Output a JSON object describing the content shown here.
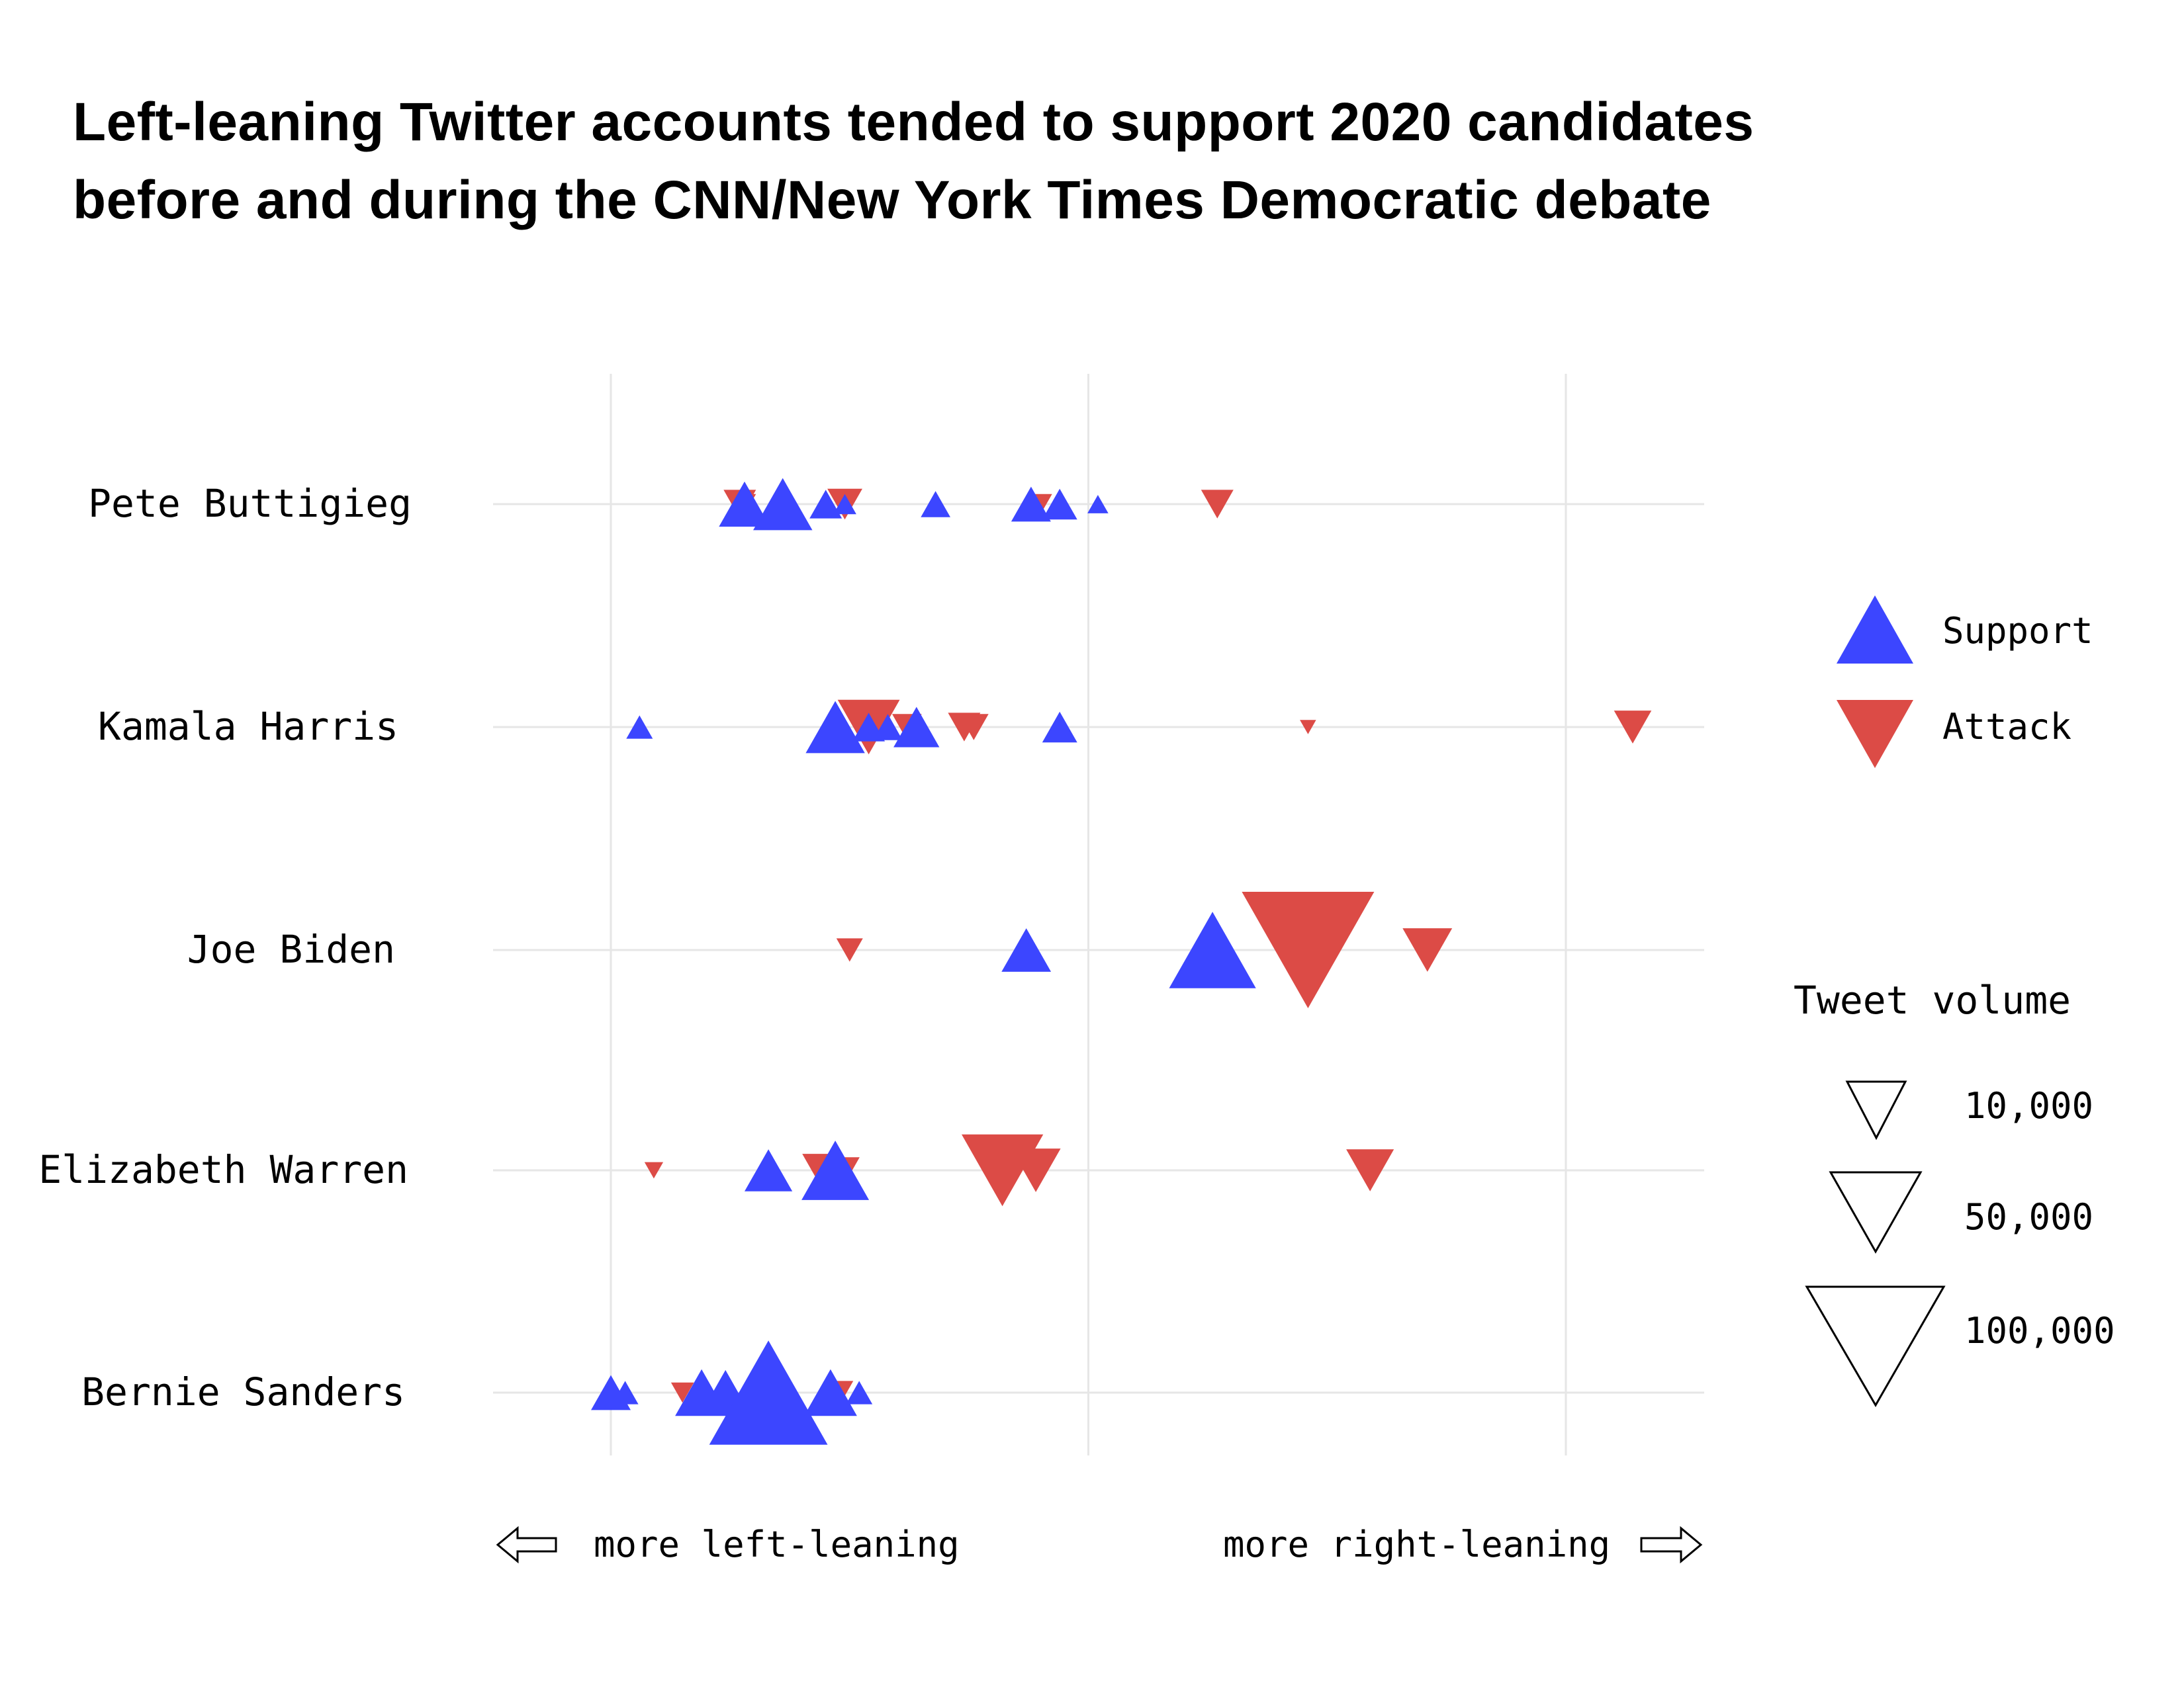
{
  "title": {
    "line1": "Left-leaning Twitter accounts tended to support 2020 candidates",
    "line2": "before and during the CNN/New York Times Democratic debate"
  },
  "colors": {
    "support": "#3c46ff",
    "attack": "#dc4b46",
    "grid": "#e6e6e6",
    "text": "#000000"
  },
  "legend": {
    "support_label": "Support",
    "attack_label": "Attack",
    "volume_title": "Tweet volume",
    "volume_items": [
      {
        "label": "10,000",
        "value": 10000
      },
      {
        "label": "50,000",
        "value": 50000
      },
      {
        "label": "100,000",
        "value": 100000
      }
    ]
  },
  "axis": {
    "left_label": "more left-leaning",
    "right_label": "more right-leaning"
  },
  "chart_data": {
    "type": "scatter",
    "title": "Left-leaning Twitter accounts tended to support 2020 candidates before and during the CNN/New York Times Democratic debate",
    "x_axis": "political leaning",
    "x_range": [
      -1.25,
      1.3
    ],
    "x_gridlines": [
      -1,
      0,
      1
    ],
    "grid": true,
    "legend_position": "right",
    "size_measure": "tweet volume",
    "categories": [
      "Pete Buttigieg",
      "Kamala Harris",
      "Joe Biden",
      "Elizabeth Warren",
      "Bernie Sanders"
    ],
    "series": [
      {
        "name": "Support",
        "marker": "triangle-up",
        "points": [
          {
            "candidate": "Pete Buttigieg",
            "x": -0.72,
            "volume": 15000
          },
          {
            "candidate": "Pete Buttigieg",
            "x": -0.64,
            "volume": 20000
          },
          {
            "candidate": "Pete Buttigieg",
            "x": -0.55,
            "volume": 6000
          },
          {
            "candidate": "Pete Buttigieg",
            "x": -0.51,
            "volume": 3000
          },
          {
            "candidate": "Pete Buttigieg",
            "x": -0.32,
            "volume": 5000
          },
          {
            "candidate": "Pete Buttigieg",
            "x": -0.12,
            "volume": 9000
          },
          {
            "candidate": "Pete Buttigieg",
            "x": -0.06,
            "volume": 7000
          },
          {
            "candidate": "Pete Buttigieg",
            "x": 0.02,
            "volume": 2500
          },
          {
            "candidate": "Kamala Harris",
            "x": -0.94,
            "volume": 4000
          },
          {
            "candidate": "Kamala Harris",
            "x": -0.53,
            "volume": 20000
          },
          {
            "candidate": "Kamala Harris",
            "x": -0.46,
            "volume": 6000
          },
          {
            "candidate": "Kamala Harris",
            "x": -0.42,
            "volume": 5000
          },
          {
            "candidate": "Kamala Harris",
            "x": -0.36,
            "volume": 12000
          },
          {
            "candidate": "Kamala Harris",
            "x": -0.06,
            "volume": 7000
          },
          {
            "candidate": "Joe Biden",
            "x": -0.13,
            "volume": 14000
          },
          {
            "candidate": "Joe Biden",
            "x": 0.26,
            "volume": 43000
          },
          {
            "candidate": "Elizabeth Warren",
            "x": -0.67,
            "volume": 13000
          },
          {
            "candidate": "Elizabeth Warren",
            "x": -0.53,
            "volume": 26000
          },
          {
            "candidate": "Bernie Sanders",
            "x": -1.0,
            "volume": 9000
          },
          {
            "candidate": "Bernie Sanders",
            "x": -0.97,
            "volume": 4000
          },
          {
            "candidate": "Bernie Sanders",
            "x": -0.81,
            "volume": 16000
          },
          {
            "candidate": "Bernie Sanders",
            "x": -0.76,
            "volume": 15000
          },
          {
            "candidate": "Bernie Sanders",
            "x": -0.67,
            "volume": 80000
          },
          {
            "candidate": "Bernie Sanders",
            "x": -0.54,
            "volume": 16000
          },
          {
            "candidate": "Bernie Sanders",
            "x": -0.48,
            "volume": 4000
          }
        ]
      },
      {
        "name": "Attack",
        "marker": "triangle-down",
        "points": [
          {
            "candidate": "Pete Buttigieg",
            "x": -0.73,
            "volume": 6000
          },
          {
            "candidate": "Pete Buttigieg",
            "x": -0.72,
            "volume": 3000
          },
          {
            "candidate": "Pete Buttigieg",
            "x": -0.51,
            "volume": 7000
          },
          {
            "candidate": "Pete Buttigieg",
            "x": -0.1,
            "volume": 3000
          },
          {
            "candidate": "Pete Buttigieg",
            "x": 0.27,
            "volume": 6000
          },
          {
            "candidate": "Kamala Harris",
            "x": -0.46,
            "volume": 22000
          },
          {
            "candidate": "Kamala Harris",
            "x": -0.38,
            "volume": 5000
          },
          {
            "candidate": "Kamala Harris",
            "x": -0.26,
            "volume": 6000
          },
          {
            "candidate": "Kamala Harris",
            "x": -0.24,
            "volume": 5000
          },
          {
            "candidate": "Kamala Harris",
            "x": 0.46,
            "volume": 1500
          },
          {
            "candidate": "Kamala Harris",
            "x": 1.14,
            "volume": 8000
          },
          {
            "candidate": "Joe Biden",
            "x": -0.5,
            "volume": 4000
          },
          {
            "candidate": "Joe Biden",
            "x": 0.46,
            "volume": 100000
          },
          {
            "candidate": "Joe Biden",
            "x": 0.71,
            "volume": 14000
          },
          {
            "candidate": "Elizabeth Warren",
            "x": -0.91,
            "volume": 2000
          },
          {
            "candidate": "Elizabeth Warren",
            "x": -0.56,
            "volume": 8000
          },
          {
            "candidate": "Elizabeth Warren",
            "x": -0.51,
            "volume": 5000
          },
          {
            "candidate": "Elizabeth Warren",
            "x": -0.54,
            "volume": 4000
          },
          {
            "candidate": "Elizabeth Warren",
            "x": -0.18,
            "volume": 38000
          },
          {
            "candidate": "Elizabeth Warren",
            "x": -0.11,
            "volume": 14000
          },
          {
            "candidate": "Elizabeth Warren",
            "x": 0.59,
            "volume": 13000
          },
          {
            "candidate": "Bernie Sanders",
            "x": -0.85,
            "volume": 3000
          },
          {
            "candidate": "Bernie Sanders",
            "x": -0.52,
            "volume": 4000
          }
        ]
      }
    ]
  }
}
